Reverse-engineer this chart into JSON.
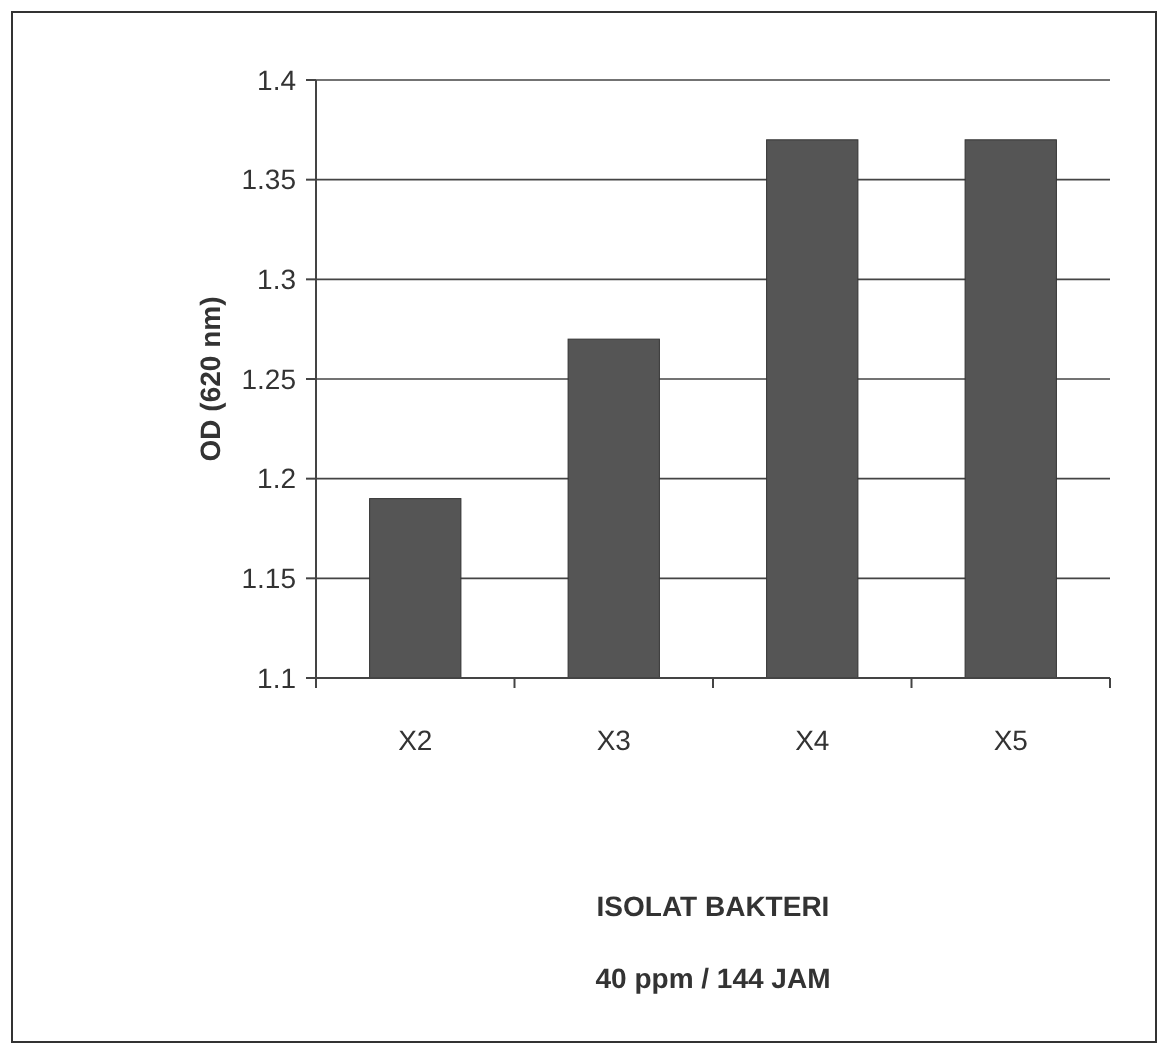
{
  "chart_data": {
    "type": "bar",
    "xlabel": "ISOLAT BAKTERI\n40 ppm / 144 JAM",
    "ylabel": "OD (620 nm)",
    "categories": [
      "X2",
      "X3",
      "X4",
      "X5"
    ],
    "values": [
      1.19,
      1.27,
      1.37,
      1.37
    ],
    "color": "#555555",
    "ylim": [
      1.1,
      1.4
    ],
    "yticks": [
      1.1,
      1.15,
      1.2,
      1.25,
      1.3,
      1.35,
      1.4
    ],
    "grid": "y"
  }
}
